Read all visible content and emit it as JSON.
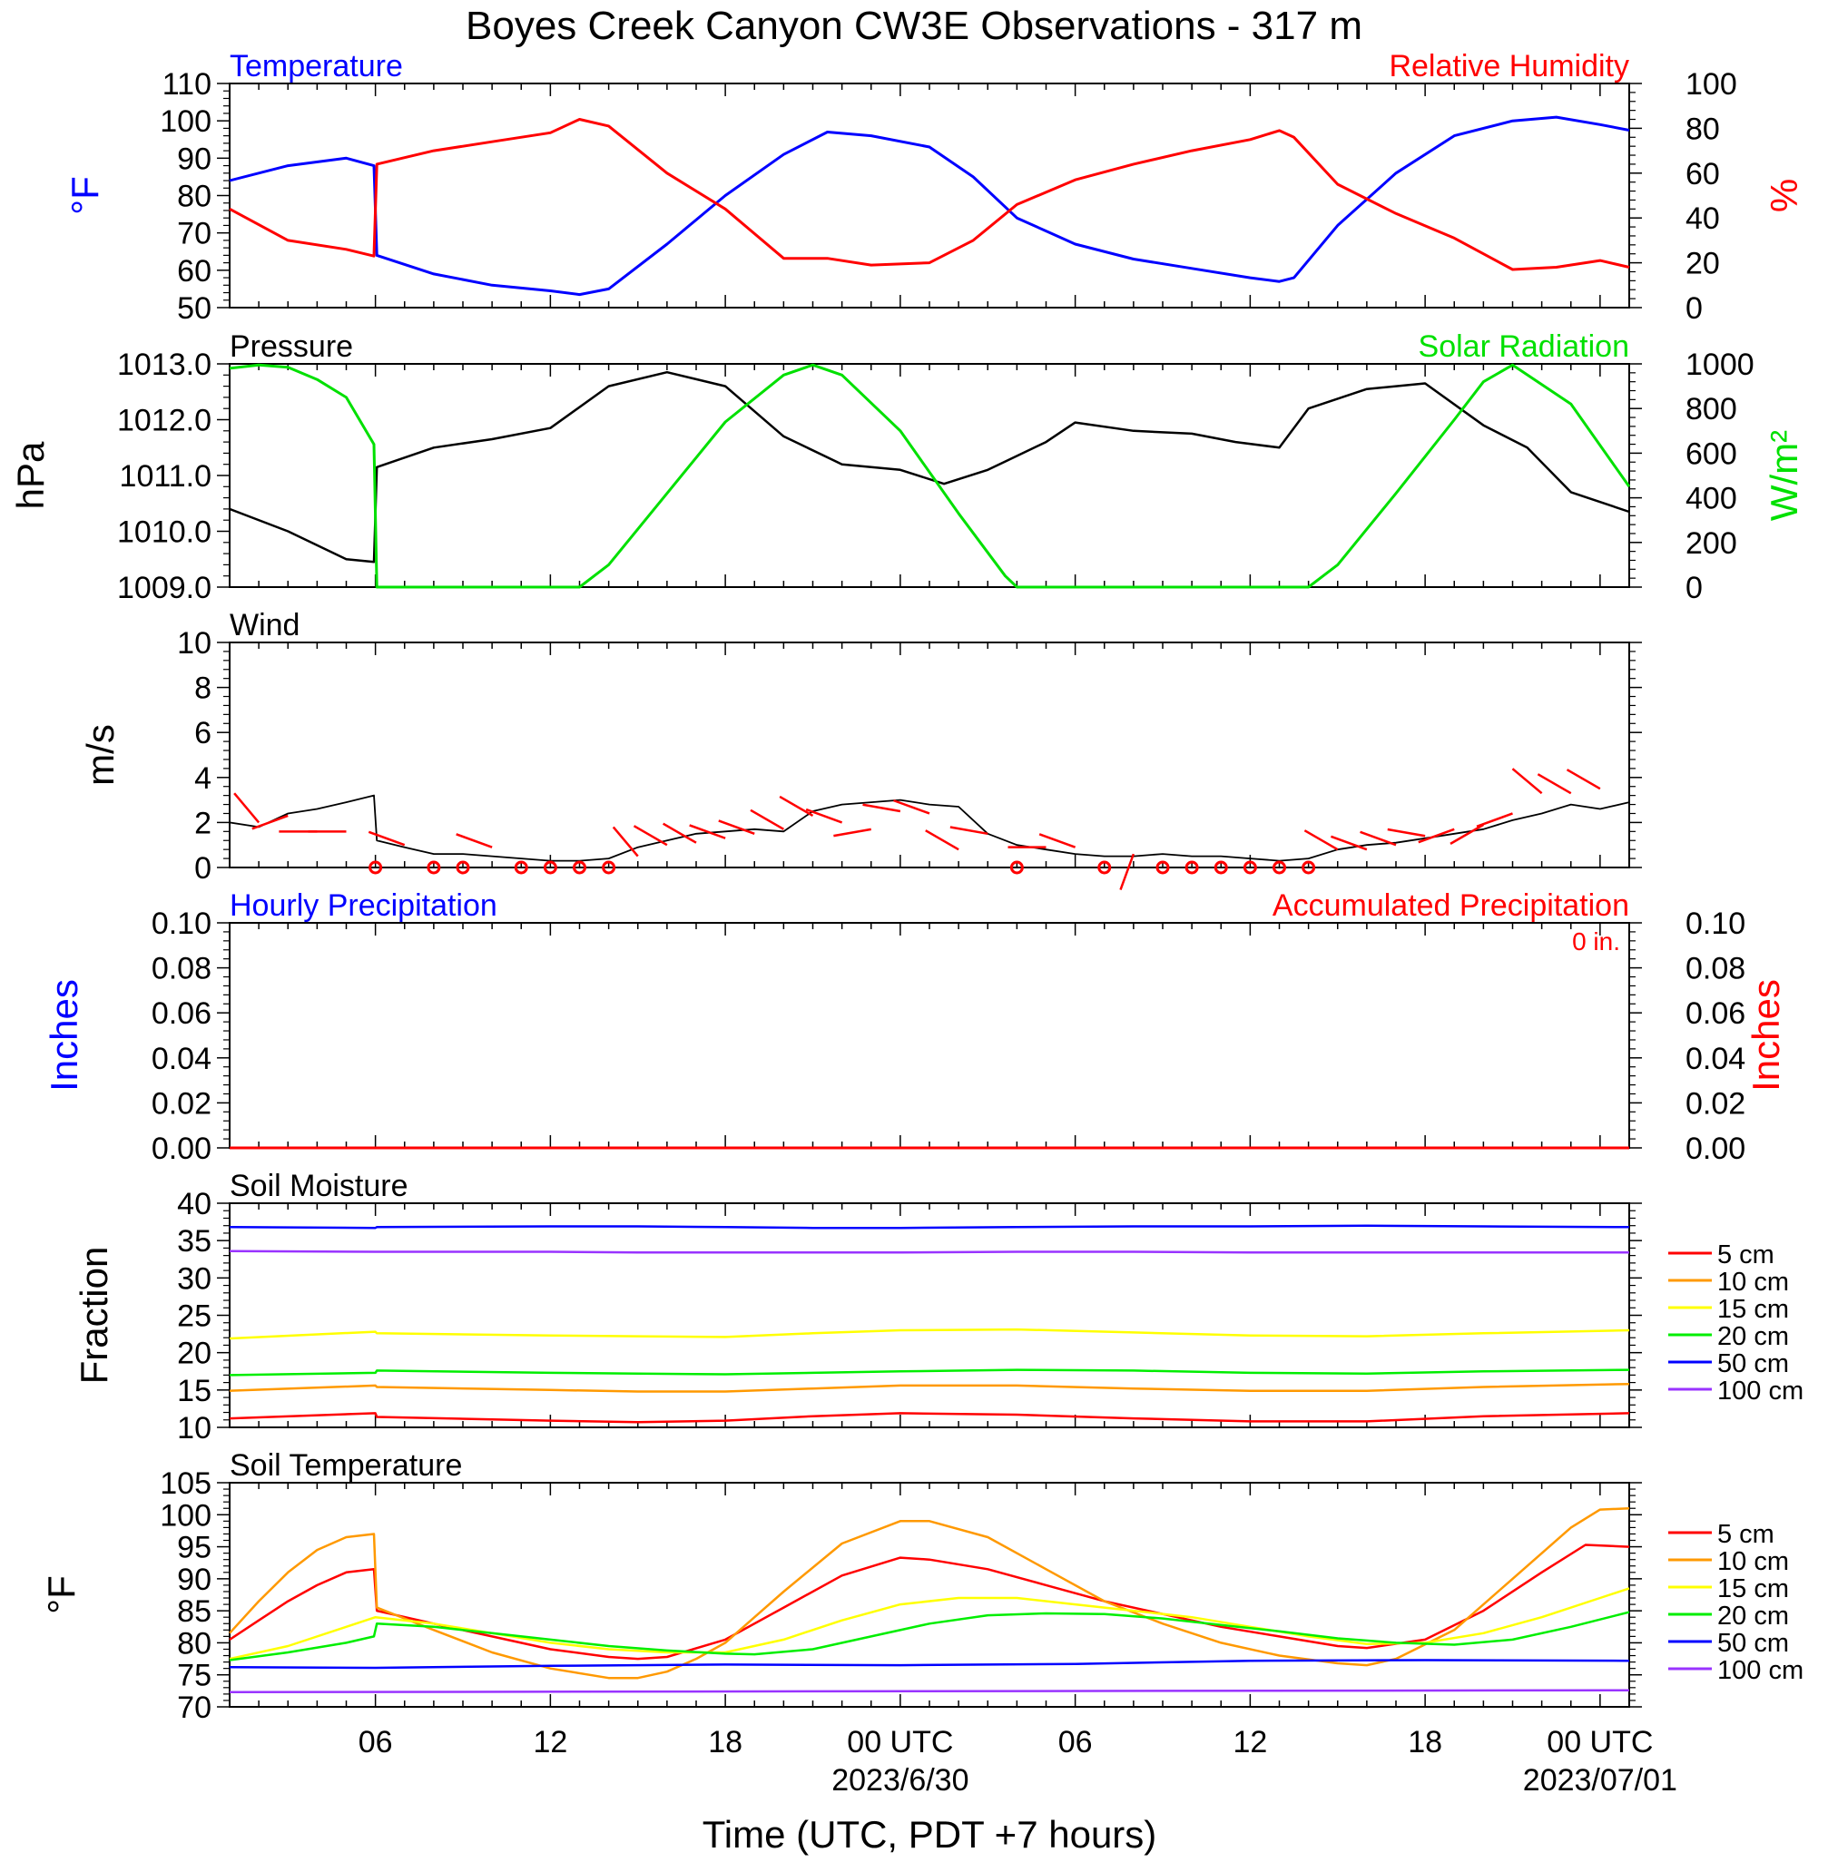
{
  "title": "Boyes Creek Canyon CW3E Observations - 317 m",
  "x_axis": {
    "label": "Time (UTC, PDT +7 hours)",
    "tick_labels": [
      "06",
      "12",
      "18",
      "00 UTC",
      "06",
      "12",
      "18",
      "00 UTC"
    ],
    "date_labels": [
      "2023/6/30",
      "2023/07/01"
    ]
  },
  "chart_data": [
    {
      "type": "line",
      "panel": "temperature_humidity",
      "title_left": "Temperature",
      "title_right": "Relative Humidity",
      "ylabel_left": "°F",
      "ylabel_right": "%",
      "ylim_left": [
        50,
        110
      ],
      "ylim_right": [
        0,
        100
      ],
      "yticks_left": [
        "110",
        "100",
        "90",
        "80",
        "70",
        "60",
        "50"
      ],
      "yticks_right": [
        "100",
        "80",
        "60",
        "40",
        "20",
        "0"
      ],
      "x_hours": [
        1,
        3,
        5,
        5.95,
        6.05,
        8,
        10,
        12,
        13,
        14,
        16,
        18,
        20,
        21.5,
        23,
        25,
        26.5,
        28,
        30,
        32,
        34,
        36,
        37,
        37.5,
        39,
        41,
        43,
        45,
        46.5,
        48,
        49
      ],
      "series": [
        {
          "name": "Temperature",
          "color": "#0000ff",
          "values": [
            84,
            88,
            90,
            88,
            64,
            59,
            56,
            54.5,
            53.5,
            55,
            67,
            80,
            91,
            97,
            96,
            93,
            85,
            74,
            67,
            63,
            60.5,
            58,
            57,
            58,
            72,
            86,
            96,
            100,
            101,
            99,
            97.5
          ]
        },
        {
          "name": "Relative Humidity",
          "color": "#ff0000",
          "values": [
            44,
            30,
            26,
            23,
            64,
            70,
            74,
            78,
            84,
            81,
            60,
            44,
            22,
            22,
            19,
            20,
            30,
            46,
            57,
            64,
            70,
            75,
            79,
            76,
            55,
            42,
            31,
            17,
            18,
            21,
            18
          ]
        }
      ]
    },
    {
      "type": "line",
      "panel": "pressure_solar",
      "title_left": "Pressure",
      "title_right": "Solar Radiation",
      "ylabel_left": "hPa",
      "ylabel_right": "W/m²",
      "ylim_left": [
        1009,
        1013
      ],
      "ylim_right": [
        0,
        1000
      ],
      "yticks_left": [
        "1013.0",
        "1012.0",
        "1011.0",
        "1010.0",
        "1009.0"
      ],
      "yticks_right": [
        "1000",
        "800",
        "600",
        "400",
        "200",
        "0"
      ],
      "series": [
        {
          "name": "Pressure",
          "color": "#000000",
          "x_hours": [
            1,
            3,
            5,
            5.95,
            6.05,
            8,
            10,
            12,
            14,
            16,
            18,
            20,
            22,
            24,
            25.5,
            27,
            29,
            30,
            32,
            34,
            35.5,
            37,
            38,
            40,
            42,
            44,
            45.5,
            47,
            49
          ],
          "values": [
            1010.4,
            1010.0,
            1009.5,
            1009.45,
            1011.15,
            1011.5,
            1011.65,
            1011.85,
            1012.6,
            1012.85,
            1012.6,
            1011.7,
            1011.2,
            1011.1,
            1010.85,
            1011.1,
            1011.6,
            1011.95,
            1011.8,
            1011.75,
            1011.6,
            1011.5,
            1012.2,
            1012.55,
            1012.65,
            1011.9,
            1011.5,
            1010.7,
            1010.35
          ]
        },
        {
          "name": "Solar Radiation",
          "color": "#00e000",
          "x_hours": [
            1,
            2,
            3,
            4,
            5,
            5.95,
            6.05,
            8,
            10,
            12,
            13,
            14,
            16,
            18,
            20,
            21,
            22,
            24,
            26,
            27.6,
            28,
            29.5,
            31,
            33,
            35,
            37,
            38,
            39,
            41,
            43,
            44,
            45,
            47,
            49
          ],
          "values": [
            980,
            995,
            985,
            930,
            850,
            640,
            0,
            0,
            0,
            0,
            0,
            100,
            420,
            740,
            950,
            995,
            950,
            700,
            330,
            50,
            0,
            0,
            0,
            0,
            0,
            0,
            0,
            100,
            420,
            750,
            920,
            995,
            820,
            450
          ]
        }
      ]
    },
    {
      "type": "line",
      "panel": "wind",
      "title_left": "Wind",
      "ylabel_left": "m/s",
      "ylim_left": [
        0,
        10
      ],
      "yticks_left": [
        "10",
        "8",
        "6",
        "4",
        "2",
        "0"
      ],
      "series": [
        {
          "name": "Wind speed",
          "color": "#000000",
          "x_hours": [
            1,
            2,
            3,
            4,
            5,
            5.95,
            6.05,
            7,
            8,
            9,
            10,
            11,
            12,
            13,
            14,
            15,
            16,
            17,
            18,
            19,
            20,
            21,
            22,
            23,
            24,
            25,
            26,
            27,
            28,
            29,
            30,
            31,
            32,
            33,
            34,
            35,
            36,
            37,
            38,
            39,
            40,
            41,
            42,
            43,
            44,
            45,
            46,
            47,
            48,
            49
          ],
          "values": [
            2.0,
            1.8,
            2.4,
            2.6,
            2.9,
            3.2,
            1.2,
            0.9,
            0.6,
            0.6,
            0.5,
            0.4,
            0.3,
            0.3,
            0.4,
            0.9,
            1.2,
            1.5,
            1.6,
            1.7,
            1.6,
            2.5,
            2.8,
            2.9,
            3.0,
            2.8,
            2.7,
            1.5,
            1.0,
            0.8,
            0.6,
            0.5,
            0.5,
            0.6,
            0.5,
            0.5,
            0.4,
            0.3,
            0.4,
            0.8,
            1.0,
            1.1,
            1.3,
            1.5,
            1.7,
            2.1,
            2.4,
            2.8,
            2.6,
            2.9
          ]
        }
      ],
      "wind_barbs": {
        "color": "#ff0000",
        "x_hours": [
          2,
          3,
          4,
          5,
          6,
          7,
          8,
          9,
          10,
          11,
          12,
          13,
          14,
          15,
          16,
          17,
          18,
          19,
          20,
          21,
          22,
          23,
          24,
          25,
          26,
          27,
          28,
          29,
          30,
          31,
          32,
          33,
          34,
          35,
          36,
          37,
          38,
          39,
          40,
          41,
          42,
          43,
          44,
          45,
          46,
          47,
          48
        ],
        "speed": [
          2,
          2.3,
          1.6,
          1.6,
          0,
          1.0,
          0,
          0,
          0.9,
          0,
          0,
          0,
          0,
          0.5,
          1.0,
          1.1,
          1.3,
          1.5,
          1.7,
          2.3,
          2.0,
          1.7,
          2.5,
          2.4,
          0.8,
          1.5,
          0,
          0.9,
          0.9,
          0,
          0.6,
          0,
          0,
          0,
          0,
          0,
          0,
          0.8,
          0.8,
          1.0,
          1.4,
          1.7,
          1.9,
          2.4,
          3.3,
          3.3,
          3.5
        ],
        "direction_deg": [
          320,
          250,
          270,
          270,
          0,
          290,
          0,
          0,
          290,
          0,
          0,
          0,
          0,
          320,
          300,
          300,
          290,
          290,
          300,
          300,
          290,
          260,
          280,
          290,
          300,
          280,
          0,
          270,
          290,
          0,
          200,
          0,
          0,
          0,
          0,
          0,
          0,
          300,
          290,
          290,
          280,
          250,
          240,
          250,
          310,
          300,
          300
        ]
      }
    },
    {
      "type": "line",
      "panel": "precipitation",
      "title_left": "Hourly Precipitation",
      "title_right": "Accumulated Precipitation",
      "annotation": "0 in.",
      "ylabel_left": "Inches",
      "ylabel_right": "Inches",
      "ylim_left": [
        0,
        0.1
      ],
      "ylim_right": [
        0,
        0.1
      ],
      "yticks_left": [
        "0.10",
        "0.08",
        "0.06",
        "0.04",
        "0.02",
        "0.00"
      ],
      "yticks_right": [
        "0.10",
        "0.08",
        "0.06",
        "0.04",
        "0.02",
        "0.00"
      ],
      "series": [
        {
          "name": "Hourly Precipitation",
          "color": "#0000ff",
          "x_hours": [
            1,
            49
          ],
          "values": [
            0,
            0
          ]
        },
        {
          "name": "Accumulated Precipitation",
          "color": "#ff0000",
          "x_hours": [
            1,
            49
          ],
          "values": [
            0,
            0
          ]
        }
      ]
    },
    {
      "type": "line",
      "panel": "soil_moisture",
      "title_left": "Soil Moisture",
      "ylabel_left": "Fraction",
      "ylim_left": [
        10,
        40
      ],
      "yticks_left": [
        "40",
        "35",
        "30",
        "25",
        "20",
        "15",
        "10"
      ],
      "legend": [
        "5 cm",
        "10 cm",
        "15 cm",
        "20 cm",
        "50 cm",
        "100 cm"
      ],
      "x_hours": [
        1,
        6,
        6.05,
        12,
        15,
        18,
        21,
        24,
        28,
        32,
        36,
        40,
        44,
        49
      ],
      "series": [
        {
          "name": "5 cm",
          "color": "#ff0000",
          "values": [
            11.2,
            11.9,
            11.4,
            10.9,
            10.7,
            10.9,
            11.5,
            11.9,
            11.7,
            11.2,
            10.8,
            10.8,
            11.5,
            11.9
          ]
        },
        {
          "name": "10 cm",
          "color": "#ff9900",
          "values": [
            14.9,
            15.6,
            15.4,
            15.0,
            14.8,
            14.8,
            15.2,
            15.6,
            15.6,
            15.2,
            14.9,
            14.9,
            15.4,
            15.8
          ]
        },
        {
          "name": "15 cm",
          "color": "#ffff00",
          "values": [
            21.9,
            22.8,
            22.6,
            22.3,
            22.2,
            22.1,
            22.6,
            23.0,
            23.1,
            22.7,
            22.3,
            22.2,
            22.6,
            23.0
          ]
        },
        {
          "name": "20 cm",
          "color": "#00ee00",
          "values": [
            17.0,
            17.3,
            17.6,
            17.3,
            17.2,
            17.1,
            17.3,
            17.5,
            17.7,
            17.6,
            17.3,
            17.2,
            17.5,
            17.7
          ]
        },
        {
          "name": "50 cm",
          "color": "#0000ff",
          "values": [
            36.8,
            36.7,
            36.8,
            36.9,
            36.9,
            36.8,
            36.7,
            36.7,
            36.8,
            36.9,
            36.9,
            37.0,
            36.9,
            36.8
          ]
        },
        {
          "name": "100 cm",
          "color": "#9933ff",
          "values": [
            33.6,
            33.5,
            33.5,
            33.5,
            33.4,
            33.4,
            33.4,
            33.4,
            33.5,
            33.5,
            33.4,
            33.4,
            33.4,
            33.4
          ]
        }
      ]
    },
    {
      "type": "line",
      "panel": "soil_temperature",
      "title_left": "Soil Temperature",
      "ylabel_left": "°F",
      "ylim_left": [
        70,
        105
      ],
      "yticks_left": [
        "105",
        "100",
        "95",
        "90",
        "85",
        "80",
        "75",
        "70"
      ],
      "legend": [
        "5 cm",
        "10 cm",
        "15 cm",
        "20 cm",
        "50 cm",
        "100 cm"
      ],
      "series": [
        {
          "name": "5 cm",
          "color": "#ff0000",
          "x_hours": [
            1,
            2,
            3,
            4,
            5,
            5.95,
            6.05,
            8,
            10,
            12,
            14,
            15,
            16,
            18,
            20,
            22,
            24,
            25,
            27,
            29,
            31,
            33,
            35,
            37,
            39,
            40,
            42,
            44,
            46,
            47.5,
            49
          ],
          "values": [
            80.5,
            83.5,
            86.5,
            89.0,
            91.0,
            91.5,
            85.0,
            83.0,
            81.0,
            79.0,
            77.8,
            77.5,
            77.8,
            80.5,
            85.5,
            90.5,
            93.3,
            93.0,
            91.5,
            89.0,
            86.5,
            84.5,
            82.5,
            81.0,
            79.5,
            79.2,
            80.5,
            85.0,
            91.0,
            95.3,
            95.0
          ]
        },
        {
          "name": "10 cm",
          "color": "#ff9900",
          "x_hours": [
            1,
            2,
            3,
            4,
            5,
            5.95,
            6.05,
            8,
            10,
            12,
            14,
            15,
            16,
            17,
            18,
            20,
            22,
            24,
            25,
            27,
            29,
            31,
            33,
            35,
            37,
            39,
            40,
            41,
            43,
            45,
            47,
            48,
            49
          ],
          "values": [
            81.5,
            86.5,
            91.0,
            94.5,
            96.5,
            97.0,
            85.5,
            82.0,
            78.5,
            76.0,
            74.5,
            74.5,
            75.5,
            77.5,
            80.0,
            88.0,
            95.5,
            99.0,
            99.0,
            96.5,
            91.5,
            86.5,
            83.0,
            80.0,
            78.0,
            76.8,
            76.5,
            77.5,
            82.0,
            90.0,
            98.0,
            100.8,
            101.0
          ]
        },
        {
          "name": "15 cm",
          "color": "#ffff00",
          "x_hours": [
            1,
            3,
            5,
            6,
            8,
            10,
            12,
            14,
            16,
            18,
            20,
            22,
            24,
            26,
            28,
            30,
            32,
            34,
            36,
            38,
            40,
            42,
            44,
            46,
            48,
            49
          ],
          "values": [
            77.5,
            79.5,
            82.5,
            84.0,
            83.0,
            81.5,
            80.0,
            79.0,
            78.5,
            78.5,
            80.5,
            83.5,
            86.0,
            87.0,
            87.0,
            86.0,
            85.0,
            84.0,
            82.5,
            81.0,
            79.8,
            80.0,
            81.5,
            84.0,
            87.0,
            88.5
          ]
        },
        {
          "name": "20 cm",
          "color": "#00ee00",
          "x_hours": [
            1,
            3,
            5,
            5.95,
            6.05,
            8,
            10,
            12,
            14,
            16,
            18,
            19,
            21,
            23,
            25,
            27,
            29,
            31,
            33,
            35,
            37,
            39,
            41,
            43,
            45,
            47,
            49
          ],
          "values": [
            77.3,
            78.5,
            80.0,
            81.0,
            83.0,
            82.5,
            81.5,
            80.5,
            79.5,
            78.8,
            78.3,
            78.2,
            79.0,
            81.0,
            83.0,
            84.3,
            84.6,
            84.5,
            83.8,
            82.8,
            81.8,
            80.7,
            80.0,
            79.7,
            80.5,
            82.5,
            84.8
          ]
        },
        {
          "name": "50 cm",
          "color": "#0000ff",
          "x_hours": [
            1,
            6,
            12,
            18,
            24,
            30,
            36,
            42,
            49
          ],
          "values": [
            76.2,
            76.1,
            76.4,
            76.6,
            76.5,
            76.7,
            77.2,
            77.3,
            77.2
          ]
        },
        {
          "name": "100 cm",
          "color": "#9933ff",
          "x_hours": [
            1,
            49
          ],
          "values": [
            72.3,
            72.6
          ]
        }
      ]
    }
  ]
}
